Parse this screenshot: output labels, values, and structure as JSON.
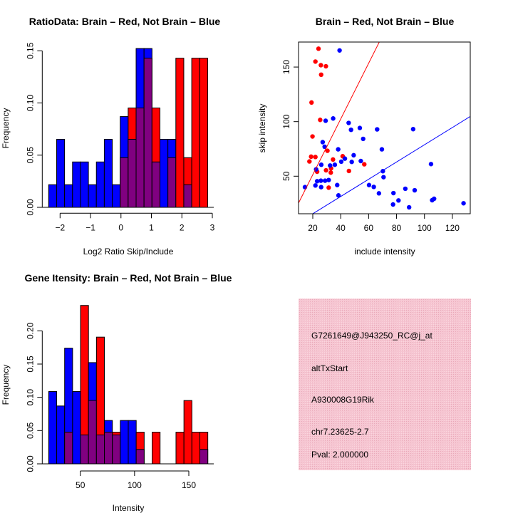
{
  "colors": {
    "blue": "#0000ff",
    "red": "#ff0000",
    "overlap": "#800080",
    "panel": "#f4c4d0",
    "pval": "#8b0000"
  },
  "chart_data": [
    {
      "type": "bar",
      "title": "RatioData: Brain – Red, Not Brain – Blue",
      "xlabel": "Log2 Ratio Skip/Include",
      "ylabel": "Frequency",
      "bin_start": -2.374,
      "bin_width": 0.261,
      "xticks": [
        "-2",
        "-1",
        "0",
        "1",
        "2",
        "3"
      ],
      "xtick_values": [
        -2,
        -1,
        0,
        1,
        2,
        3
      ],
      "yticks": [
        "0.00",
        "0.05",
        "0.10",
        "0.15"
      ],
      "ytick_values": [
        0,
        0.05,
        0.1,
        0.15
      ],
      "series": [
        {
          "name": "Not Brain",
          "color": "blue",
          "values": [
            0.0217,
            0.0652,
            0.0217,
            0.0435,
            0.0435,
            0.0217,
            0.0435,
            0.0652,
            0.0217,
            0.087,
            0.0652,
            0.1522,
            0.1522,
            0.0435,
            0.0652,
            0.0652,
            0,
            0.0217,
            0,
            0
          ]
        },
        {
          "name": "Brain",
          "color": "red",
          "values": [
            0,
            0,
            0,
            0,
            0,
            0,
            0,
            0,
            0,
            0.0476,
            0.0952,
            0.0952,
            0.1429,
            0.0952,
            0,
            0.0476,
            0.1429,
            0.0476,
            0.1429,
            0.1429
          ]
        }
      ]
    },
    {
      "type": "scatter",
      "title": "Brain – Red, Not Brain – Blue",
      "xlabel": "include intensity",
      "ylabel": "skip intensity",
      "xlim": [
        9.8,
        132.8
      ],
      "ylim": [
        15.6,
        172.9
      ],
      "xticks": [
        "20",
        "40",
        "60",
        "80",
        "100",
        "120"
      ],
      "xtick_values": [
        20,
        40,
        60,
        80,
        100,
        120
      ],
      "yticks": [
        "50",
        "100",
        "150"
      ],
      "ytick_values": [
        50,
        100,
        150
      ],
      "lines": [
        {
          "color": "red",
          "slope": 2.55,
          "intercept": 0.4
        },
        {
          "color": "blue",
          "slope": 0.79,
          "intercept": -0.2
        }
      ],
      "series": [
        {
          "name": "Brain",
          "color": "red",
          "points": [
            [
              24.1,
              166.8
            ],
            [
              21.9,
              155
            ],
            [
              25.8,
              151.7
            ],
            [
              29.4,
              150.7
            ],
            [
              26,
              143
            ],
            [
              19.1,
              117.5
            ],
            [
              25.3,
              101.6
            ],
            [
              19.8,
              86.4
            ],
            [
              30.5,
              73.3
            ],
            [
              18.8,
              67.9
            ],
            [
              21.9,
              67.6
            ],
            [
              17.6,
              63.5
            ],
            [
              34.5,
              65.3
            ],
            [
              41.4,
              68.3
            ],
            [
              56.9,
              60.9
            ],
            [
              23.1,
              54.1
            ],
            [
              29.5,
              55.4
            ],
            [
              33.1,
              57.2
            ],
            [
              32.9,
              53.3
            ],
            [
              45.9,
              54.8
            ],
            [
              31.4,
              39.5
            ]
          ]
        },
        {
          "name": "Not Brain",
          "color": "blue",
          "points": [
            [
              39.2,
              165.2
            ],
            [
              14.4,
              40
            ],
            [
              29.2,
              100.8
            ],
            [
              34.6,
              102.9
            ],
            [
              45.7,
              98.8
            ],
            [
              47.4,
              92.5
            ],
            [
              53.7,
              94.2
            ],
            [
              56.1,
              84.2
            ],
            [
              66.1,
              92.9
            ],
            [
              91.9,
              93.1
            ],
            [
              27.1,
              81.2
            ],
            [
              28.5,
              77
            ],
            [
              38.2,
              74.6
            ],
            [
              69.5,
              74.6
            ],
            [
              49.3,
              69.2
            ],
            [
              43,
              66.1
            ],
            [
              40.4,
              63.3
            ],
            [
              47.9,
              63.1
            ],
            [
              54.4,
              63.9
            ],
            [
              26.1,
              60.5
            ],
            [
              32.4,
              59.8
            ],
            [
              35.8,
              60.5
            ],
            [
              22.4,
              56.3
            ],
            [
              70.2,
              54.6
            ],
            [
              70.7,
              49.1
            ],
            [
              104.7,
              61.1
            ],
            [
              23.1,
              45.4
            ],
            [
              25.8,
              45.9
            ],
            [
              28.8,
              45.9
            ],
            [
              31.4,
              46.5
            ],
            [
              21.9,
              41.5
            ],
            [
              26,
              40
            ],
            [
              37.5,
              41.9
            ],
            [
              60.3,
              41.9
            ],
            [
              63.7,
              40.2
            ],
            [
              67.4,
              34.3
            ],
            [
              38.4,
              32.4
            ],
            [
              77.8,
              34.5
            ],
            [
              86.3,
              38.5
            ],
            [
              93,
              37.1
            ],
            [
              77.5,
              24.1
            ],
            [
              81.4,
              27.8
            ],
            [
              89,
              21.5
            ],
            [
              105.5,
              28
            ],
            [
              106.9,
              29.3
            ],
            [
              128,
              25.2
            ]
          ]
        }
      ]
    },
    {
      "type": "bar",
      "title": "Gene Itensity: Brain – Red, Not Brain – Blue",
      "xlabel": "Intensity",
      "ylabel": "Frequency",
      "bin_start": 20.9,
      "bin_width": 7.33,
      "xticks": [
        "50",
        "100",
        "150"
      ],
      "xtick_values": [
        50,
        100,
        150
      ],
      "yticks": [
        "0.00",
        "0.05",
        "0.10",
        "0.15",
        "0.20"
      ],
      "ytick_values": [
        0,
        0.05,
        0.1,
        0.15,
        0.2
      ],
      "series": [
        {
          "name": "Not Brain",
          "color": "blue",
          "values": [
            0.1087,
            0.087,
            0.1739,
            0.1087,
            0.0435,
            0.1522,
            0.0435,
            0.0652,
            0.0435,
            0.0652,
            0.0652,
            0.0217,
            0,
            0,
            0,
            0,
            0,
            0,
            0,
            0.0217
          ]
        },
        {
          "name": "Brain",
          "color": "red",
          "values": [
            0,
            0,
            0.0476,
            0,
            0.2381,
            0.0952,
            0.1905,
            0.0476,
            0.0476,
            0,
            0,
            0.0476,
            0,
            0.0476,
            0,
            0,
            0.0476,
            0.0952,
            0.0476,
            0.0476
          ]
        }
      ]
    }
  ],
  "info_panel": {
    "probe_id": "G7261649@J943250_RC@j_at",
    "event_type": "altTxStart",
    "gene": "A930008G19Rik",
    "location": "chr7.23625-2.7",
    "pval": "Pval: 2.000000"
  }
}
